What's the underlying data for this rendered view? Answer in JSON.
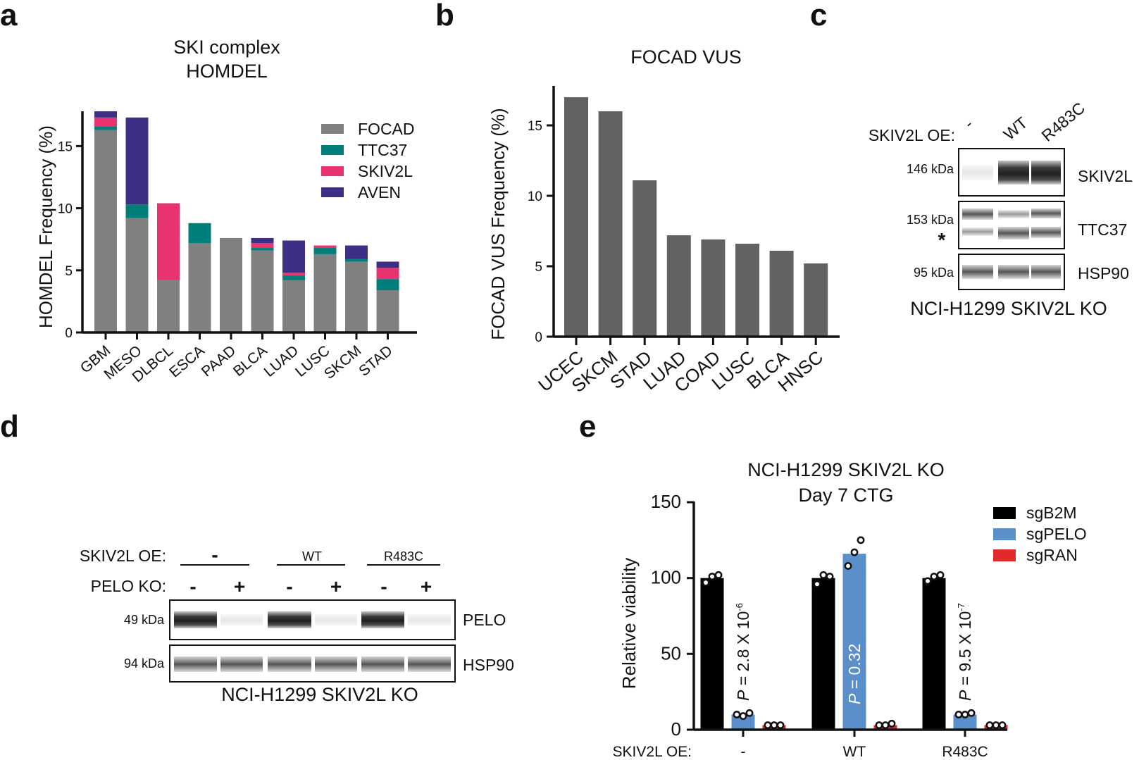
{
  "panel_labels": [
    "a",
    "b",
    "c",
    "d",
    "e"
  ],
  "chart_data": [
    {
      "panel": "a",
      "type": "bar",
      "stacked": true,
      "title": "SKI complex",
      "subtitle": "HOMDEL",
      "xlabel": "",
      "ylabel": "HOMDEL Frequency (%)",
      "ylim": [
        0,
        17.8
      ],
      "yticks": [
        0,
        5,
        10,
        15
      ],
      "categories": [
        "GBM",
        "MESO",
        "DLBCL",
        "ESCA",
        "PAAD",
        "BLCA",
        "LUAD",
        "LUSC",
        "SKCM",
        "STAD"
      ],
      "series": [
        {
          "name": "FOCAD",
          "color": "#808080",
          "values": [
            16.3,
            9.2,
            4.2,
            7.2,
            7.6,
            6.6,
            4.2,
            6.3,
            5.7,
            3.4
          ]
        },
        {
          "name": "TTC37",
          "color": "#007f7a",
          "values": [
            0.3,
            1.1,
            0,
            1.6,
            0,
            0.2,
            0.4,
            0.5,
            0.2,
            0.9
          ]
        },
        {
          "name": "SKIV2L",
          "color": "#e8336e",
          "values": [
            0.7,
            0,
            6.2,
            0,
            0,
            0.4,
            0.2,
            0.2,
            0,
            0.9
          ]
        },
        {
          "name": "AVEN",
          "color": "#3d2f86",
          "values": [
            0.5,
            7.0,
            0,
            0,
            0,
            0.4,
            2.6,
            0,
            1.1,
            0.5
          ]
        }
      ],
      "legend": "top-right"
    },
    {
      "panel": "b",
      "type": "bar",
      "title": "FOCAD VUS",
      "xlabel": "",
      "ylabel": "FOCAD VUS Frequency (%)",
      "ylim": [
        0,
        17.8
      ],
      "yticks": [
        0,
        5,
        10,
        15
      ],
      "color": "#616363",
      "categories": [
        "UCEC",
        "SKCM",
        "STAD",
        "LUAD",
        "COAD",
        "LUSC",
        "BLCA",
        "HNSC"
      ],
      "values": [
        17.0,
        16.0,
        11.1,
        7.2,
        6.9,
        6.6,
        6.1,
        5.2
      ]
    },
    {
      "panel": "e",
      "type": "bar",
      "title": "NCI-H1299 SKIV2L KO",
      "subtitle": "Day 7 CTG",
      "xlabel": "SKIV2L OE:",
      "ylabel": "Relative viability",
      "ylim": [
        0,
        150
      ],
      "yticks": [
        0,
        50,
        100,
        150
      ],
      "categories": [
        "-",
        "WT",
        "R483C"
      ],
      "series": [
        {
          "name": "sgB2M",
          "color": "#000000",
          "values": [
            100,
            100,
            100
          ],
          "points": [
            [
              97,
              101,
              102
            ],
            [
              96,
              102,
              101
            ],
            [
              98,
              101,
              102
            ]
          ]
        },
        {
          "name": "sgPELO",
          "color": "#5b8fcb",
          "values": [
            10,
            116,
            10
          ],
          "points": [
            [
              10,
              9,
              11
            ],
            [
              108,
              117,
              125
            ],
            [
              10,
              10,
              11
            ]
          ]
        },
        {
          "name": "sgRAN",
          "color": "#e32a2a",
          "values": [
            3,
            3,
            3
          ],
          "points": [
            [
              3,
              3,
              3
            ],
            [
              3,
              3,
              4
            ],
            [
              3,
              3,
              3
            ]
          ]
        }
      ],
      "annotations": [
        "P = 2.8 X 10-6",
        "P = 0.32",
        "P = 9.5 X 10-7"
      ],
      "legend": "top-right"
    }
  ],
  "panel_c": {
    "oe_label": "SKIV2L OE:",
    "lanes": [
      "-",
      "WT",
      "R483C"
    ],
    "rows": [
      {
        "kda": "146 kDa",
        "protein": "SKIV2L"
      },
      {
        "kda": "153 kDa",
        "protein": "TTC37",
        "marker": "*"
      },
      {
        "kda": "95 kDa",
        "protein": "HSP90"
      }
    ],
    "caption": "NCI-H1299 SKIV2L KO"
  },
  "panel_d": {
    "oe_label": "SKIV2L OE:",
    "ko_label": "PELO KO:",
    "oe_groups": [
      "-",
      "WT",
      "R483C"
    ],
    "ko_signs": [
      "-",
      "+",
      "-",
      "+",
      "-",
      "+"
    ],
    "rows": [
      {
        "kda": "49 kDa",
        "protein": "PELO"
      },
      {
        "kda": "94 kDa",
        "protein": "HSP90"
      }
    ],
    "caption": "NCI-H1299 SKIV2L KO"
  },
  "p_prefix": "P",
  "p_values": [
    {
      "base": " = 2.8 X 10",
      "exp": "-6"
    },
    {
      "base": " = 0.32",
      "exp": ""
    },
    {
      "base": " = 9.5 X 10",
      "exp": "-7"
    }
  ]
}
